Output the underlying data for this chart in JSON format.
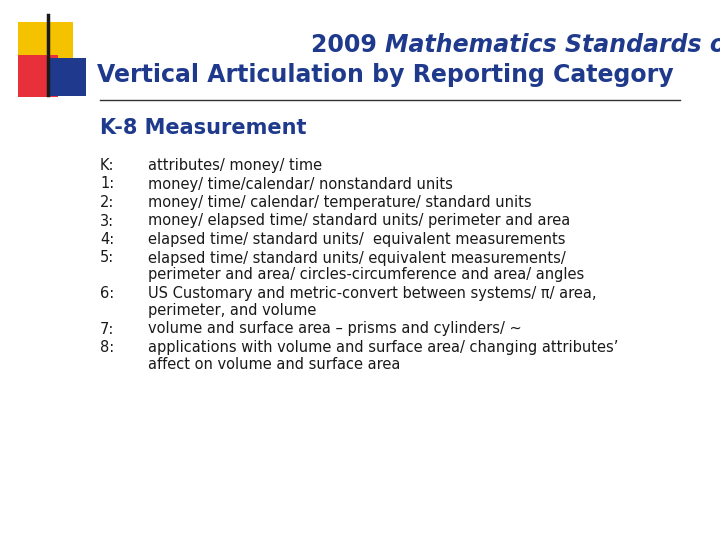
{
  "title_2009": "2009 ",
  "title_italic": "Mathematics Standards of Learning",
  "title_line2": "Vertical Articulation by Reporting Category",
  "subtitle": "K-8 Measurement",
  "title_color": "#1F3A8C",
  "bg_color": "#FFFFFF",
  "items": [
    {
      "label": "K:",
      "text": "attributes/ money/ time"
    },
    {
      "label": "1:",
      "text": "money/ time/calendar/ nonstandard units"
    },
    {
      "label": "2:",
      "text": "money/ time/ calendar/ temperature/ standard units"
    },
    {
      "label": "3:",
      "text": "money/ elapsed time/ standard units/ perimeter and area"
    },
    {
      "label": "4:",
      "text": "elapsed time/ standard units/  equivalent measurements"
    },
    {
      "label": "5:",
      "text": "elapsed time/ standard units/ equivalent measurements/\nperimeter and area/ circles-circumference and area/ angles"
    },
    {
      "label": "6:",
      "text": "US Customary and metric-convert between systems/ π/ area,\nperimeter, and volume"
    },
    {
      "label": "7:",
      "text": "volume and surface area – prisms and cylinders/ ~"
    },
    {
      "label": "8:",
      "text": "applications with volume and surface area/ changing attributes’\naffect on volume and surface area"
    }
  ],
  "logo_yellow": "#F5C200",
  "logo_red": "#E8303A",
  "logo_blue": "#1F3A8C",
  "logo_line_color": "#1A1A1A",
  "divider_color": "#333333",
  "item_label_color": "#1A1A1A",
  "item_text_color": "#1A1A1A",
  "title_fontsize": 17,
  "subtitle_fontsize": 15,
  "item_fontsize": 10.5
}
